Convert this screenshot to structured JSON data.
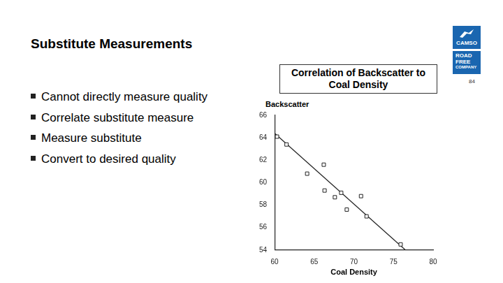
{
  "slide": {
    "title": "Substitute Measurements",
    "bullets": [
      "Cannot directly measure quality",
      "Correlate substitute measure",
      "Measure substitute",
      "Convert to desired quality"
    ],
    "page_number": "84",
    "logo": {
      "top": "CAMSO",
      "bottom": [
        "ROAD",
        "FREE",
        "COMPANY"
      ]
    }
  },
  "chart_data": {
    "type": "scatter",
    "title": "Correlation of Backscatter to Coal Density",
    "x_label": "Coal Density",
    "y_label": "Backscatter",
    "xlim": [
      60,
      80
    ],
    "xticks": [
      60,
      65,
      70,
      75,
      80
    ],
    "ylim": [
      54,
      66
    ],
    "yticks": [
      54,
      56,
      58,
      60,
      62,
      64,
      66
    ],
    "grid": false,
    "series": [
      {
        "type": "scatter",
        "marker": "square",
        "color": "#222222",
        "x": [
          60.3,
          61.5,
          64.1,
          66.2,
          66.3,
          67.6,
          68.4,
          69.1,
          70.9,
          71.6,
          75.9
        ],
        "values": [
          64.1,
          63.4,
          60.8,
          61.6,
          59.3,
          58.7,
          59.1,
          57.6,
          58.8,
          57.0,
          54.5
        ]
      },
      {
        "type": "line",
        "line_style": "solid",
        "color": "#222222",
        "x": [
          60,
          76.5
        ],
        "values": [
          64.4,
          54.0
        ]
      }
    ]
  }
}
